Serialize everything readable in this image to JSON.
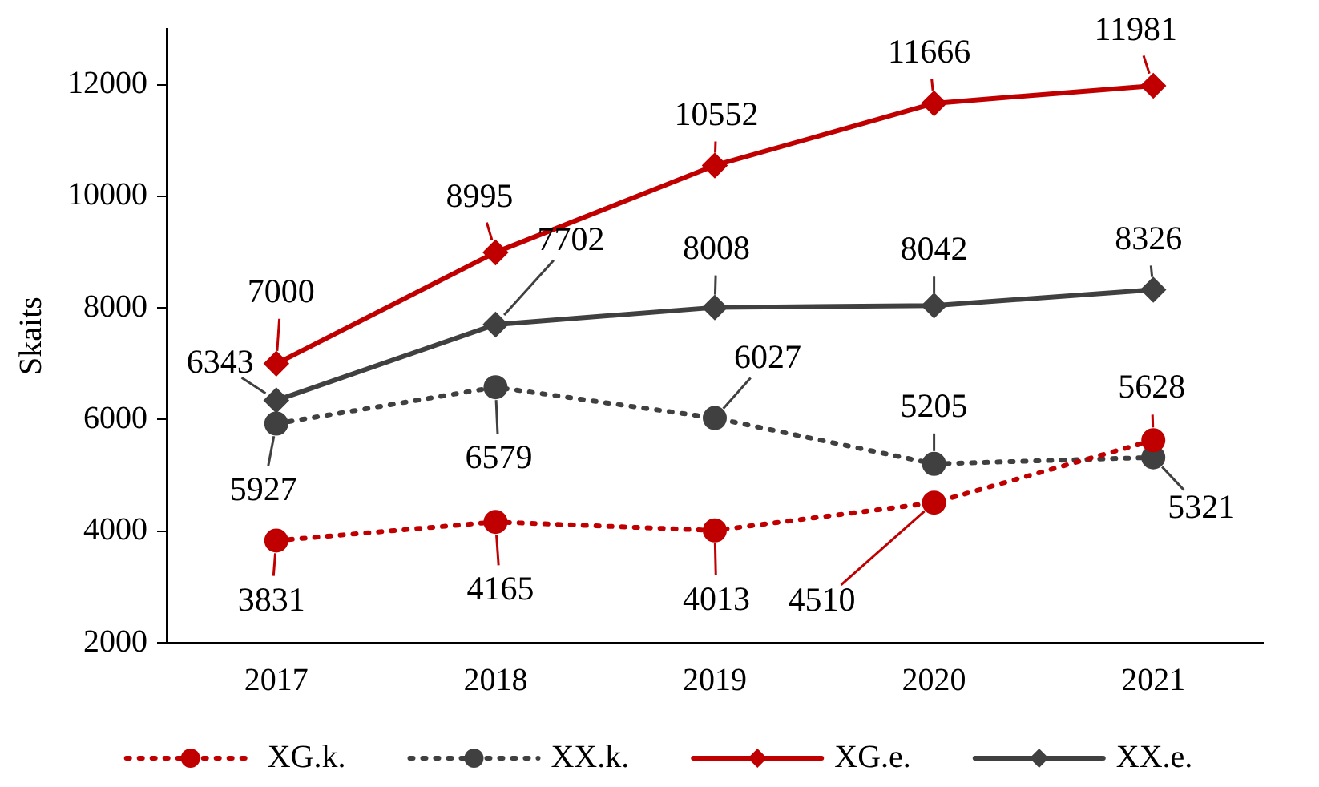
{
  "chart_data": {
    "type": "line",
    "ylabel": "Skaits",
    "categories": [
      "2017",
      "2018",
      "2019",
      "2020",
      "2021"
    ],
    "series": [
      {
        "name": "XG.k.",
        "color": "#c00000",
        "marker": "circle",
        "line_style": "dotted",
        "values": [
          3831,
          4165,
          4013,
          4510,
          5628
        ]
      },
      {
        "name": "XX.k.",
        "color": "#404040",
        "marker": "circle",
        "line_style": "dotted",
        "values": [
          5927,
          6579,
          6027,
          5205,
          5321
        ]
      },
      {
        "name": "XG.e.",
        "color": "#c00000",
        "marker": "diamond",
        "line_style": "solid",
        "values": [
          7000,
          8995,
          10552,
          11666,
          11981
        ]
      },
      {
        "name": "XX.e.",
        "color": "#404040",
        "marker": "diamond",
        "line_style": "solid",
        "values": [
          6343,
          7702,
          8008,
          8042,
          8326
        ]
      }
    ],
    "ylim": [
      2000,
      13000
    ],
    "yticks": [
      2000,
      4000,
      6000,
      8000,
      10000,
      12000
    ],
    "grid": false,
    "legend": "bottom",
    "data_labels": true
  }
}
